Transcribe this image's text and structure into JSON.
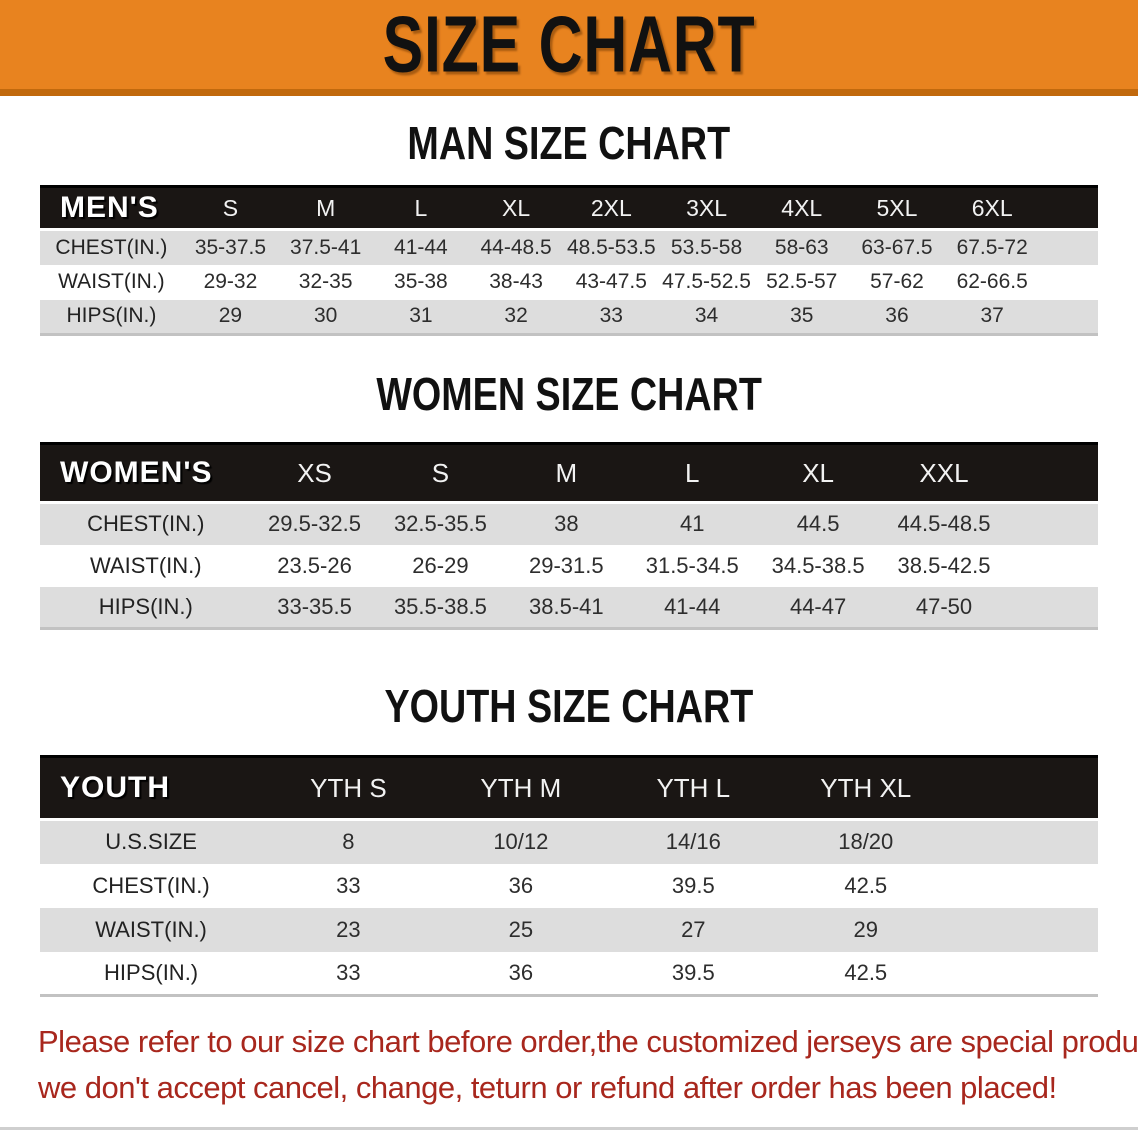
{
  "banner": {
    "title": "SIZE CHART"
  },
  "sections": [
    {
      "id": "men",
      "title": "MAN SIZE CHART",
      "table": {
        "label": "MEN'S",
        "columns": [
          "S",
          "M",
          "L",
          "XL",
          "2XL",
          "3XL",
          "4XL",
          "5XL",
          "6XL"
        ],
        "rows": [
          {
            "label": "CHEST(IN.)",
            "values": [
              "35-37.5",
              "37.5-41",
              "41-44",
              "44-48.5",
              "48.5-53.5",
              "53.5-58",
              "58-63",
              "63-67.5",
              "67.5-72"
            ]
          },
          {
            "label": "WAIST(IN.)",
            "values": [
              "29-32",
              "32-35",
              "35-38",
              "38-43",
              "43-47.5",
              "47.5-52.5",
              "52.5-57",
              "57-62",
              "62-66.5"
            ]
          },
          {
            "label": "HIPS(IN.)",
            "values": [
              "29",
              "30",
              "31",
              "32",
              "33",
              "34",
              "35",
              "36",
              "37"
            ]
          }
        ]
      }
    },
    {
      "id": "women",
      "title": "WOMEN SIZE CHART",
      "table": {
        "label": "WOMEN'S",
        "columns": [
          "XS",
          "S",
          "M",
          "L",
          "XL",
          "XXL"
        ],
        "rows": [
          {
            "label": "CHEST(IN.)",
            "values": [
              "29.5-32.5",
              "32.5-35.5",
              "38",
              "41",
              "44.5",
              "44.5-48.5"
            ]
          },
          {
            "label": "WAIST(IN.)",
            "values": [
              "23.5-26",
              "26-29",
              "29-31.5",
              "31.5-34.5",
              "34.5-38.5",
              "38.5-42.5"
            ]
          },
          {
            "label": "HIPS(IN.)",
            "values": [
              "33-35.5",
              "35.5-38.5",
              "38.5-41",
              "41-44",
              "44-47",
              "47-50"
            ]
          }
        ]
      }
    },
    {
      "id": "youth",
      "title": "YOUTH SIZE CHART",
      "table": {
        "label": "YOUTH",
        "columns": [
          "YTH S",
          "YTH M",
          "YTH L",
          "YTH XL"
        ],
        "rows": [
          {
            "label": "U.S.SIZE",
            "values": [
              "8",
              "10/12",
              "14/16",
              "18/20"
            ]
          },
          {
            "label": "CHEST(IN.)",
            "values": [
              "33",
              "36",
              "39.5",
              "42.5"
            ]
          },
          {
            "label": "WAIST(IN.)",
            "values": [
              "23",
              "25",
              "27",
              "29"
            ]
          },
          {
            "label": "HIPS(IN.)",
            "values": [
              "33",
              "36",
              "39.5",
              "42.5"
            ]
          }
        ]
      }
    }
  ],
  "disclaimer": {
    "line1": "Please refer to our size chart before order,the customized jerseys are special products,",
    "line2": "we don't accept cancel, change, teturn or refund after order has been placed!"
  },
  "colors": {
    "banner_bg": "#E8831F",
    "banner_border": "#C1690D",
    "header_bg": "#1A1614",
    "stripe_grey": "#DDDDDD",
    "red_text": "#A8271D"
  }
}
